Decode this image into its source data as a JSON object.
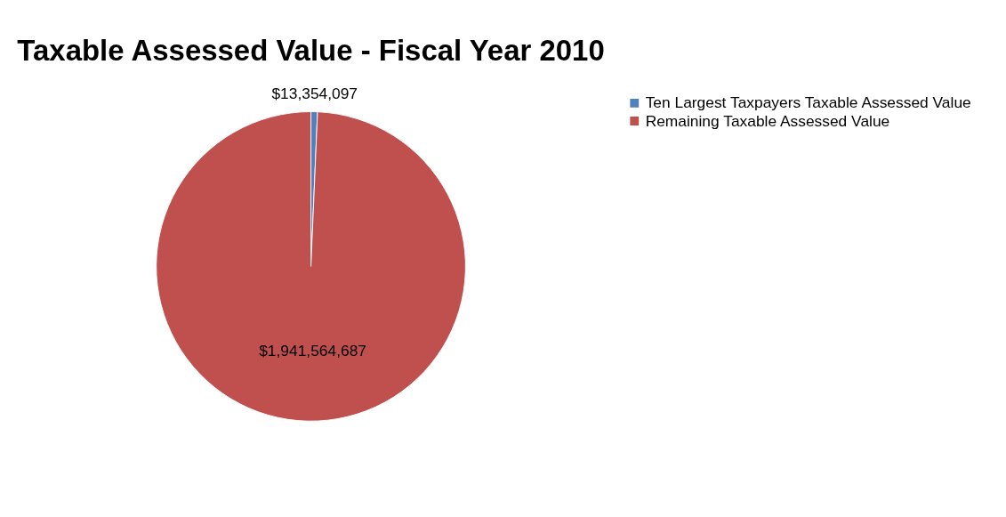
{
  "chart_data": {
    "type": "pie",
    "title": "Taxable Assessed Value - Fiscal Year 2010",
    "categories": [
      "Ten Largest Taxpayers Taxable Assessed Value",
      "Remaining Taxable Assessed Value"
    ],
    "values": [
      13354097,
      1941564687
    ],
    "colors": [
      "#4f81bd",
      "#c0504d"
    ],
    "value_labels": [
      "$13,354,097",
      "$1,941,564,687"
    ],
    "legend": "right"
  }
}
